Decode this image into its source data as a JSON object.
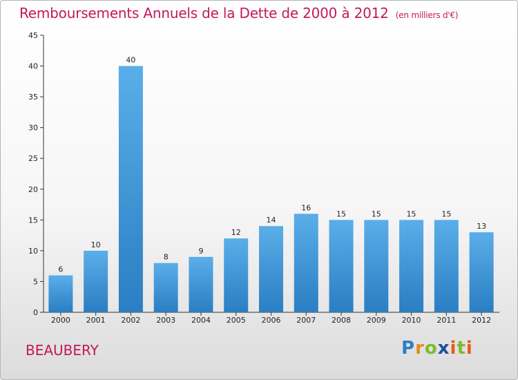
{
  "header": {
    "title": "Remboursements Annuels de la Dette de 2000 à 2012",
    "subtitle": "(en milliers d'€)"
  },
  "footer": {
    "place": "BEAUBERY",
    "logo": "Proxiti"
  },
  "colors": {
    "bar_top": "#5aaee9",
    "bar_bottom": "#2a7ec2",
    "title": "#c2185b"
  },
  "chart_data": {
    "type": "bar",
    "title": "Remboursements Annuels de la Dette de 2000 à 2012",
    "xlabel": "",
    "ylabel": "(en milliers d'€)",
    "categories": [
      "2000",
      "2001",
      "2002",
      "2003",
      "2004",
      "2005",
      "2006",
      "2007",
      "2008",
      "2009",
      "2010",
      "2011",
      "2012"
    ],
    "values": [
      6,
      10,
      40,
      8,
      9,
      12,
      14,
      16,
      15,
      15,
      15,
      15,
      13
    ],
    "ylim": [
      0,
      45
    ],
    "yticks": [
      0,
      5,
      10,
      15,
      20,
      25,
      30,
      35,
      40,
      45
    ],
    "grid": false,
    "legend": "none"
  }
}
